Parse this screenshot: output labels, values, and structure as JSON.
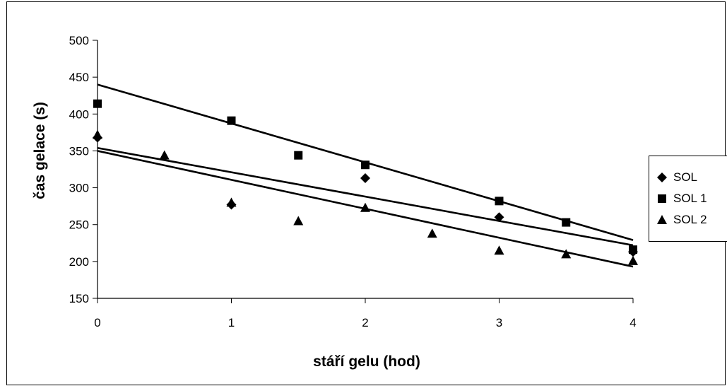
{
  "chart_data": {
    "type": "scatter",
    "title": "",
    "xlabel": "stáří gelu (hod)",
    "ylabel": "čas gelace (s)",
    "xlim": [
      0,
      4
    ],
    "ylim": [
      150,
      500
    ],
    "xticks": [
      "0",
      "1",
      "2",
      "3",
      "4"
    ],
    "yticks": [
      "150",
      "200",
      "250",
      "300",
      "350",
      "400",
      "450",
      "500"
    ],
    "grid": false,
    "legend_position": "right",
    "series": [
      {
        "name": "SOL",
        "marker": "diamond",
        "points": [
          [
            0,
            368
          ],
          [
            1,
            277
          ],
          [
            2,
            313
          ],
          [
            3,
            260
          ],
          [
            4,
            213
          ]
        ],
        "trendline": [
          354,
          222
        ]
      },
      {
        "name": "SOL 1",
        "marker": "square",
        "points": [
          [
            0,
            414
          ],
          [
            1,
            391
          ],
          [
            1.5,
            344
          ],
          [
            2,
            331
          ],
          [
            3,
            282
          ],
          [
            3.5,
            253
          ],
          [
            4,
            216
          ]
        ],
        "trendline": [
          440,
          229
        ]
      },
      {
        "name": "SOL 2",
        "marker": "triangle",
        "points": [
          [
            0,
            372
          ],
          [
            0.5,
            344
          ],
          [
            1,
            280
          ],
          [
            1.5,
            255
          ],
          [
            2,
            273
          ],
          [
            2.5,
            238
          ],
          [
            3,
            215
          ],
          [
            3.5,
            210
          ],
          [
            4,
            201
          ]
        ],
        "trendline": [
          350,
          193
        ]
      }
    ]
  },
  "legend": {
    "items": [
      "SOL",
      "SOL 1",
      "SOL 2"
    ]
  }
}
